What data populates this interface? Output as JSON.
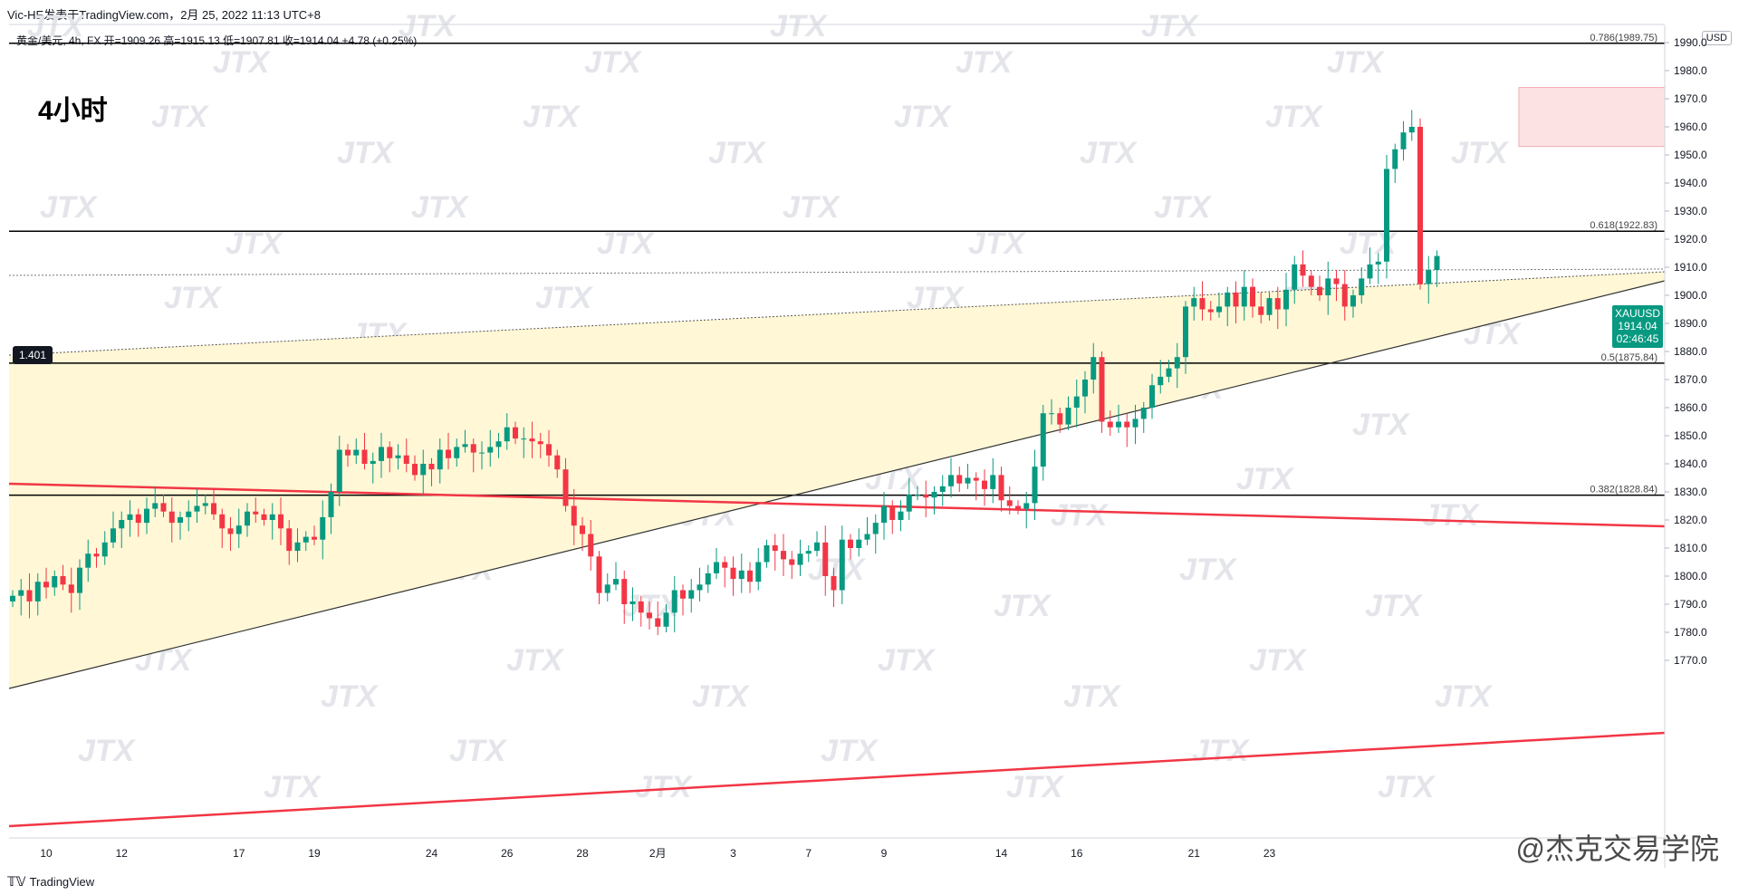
{
  "header": {
    "publisher": "Vic-HE发表于TradingView.com，2月 25, 2022 11:13 UTC+8",
    "ohlc": "黄金/美元, 4h, FX  开=1909.26  高=1915.13  低=1907.81  收=1914.04  +4.78 (+0.25%)",
    "currency": "USD"
  },
  "timeframe_label": "4小时",
  "ratio_tag": "1.401",
  "price_tag": {
    "symbol": "XAUUSD",
    "price": "1914.04",
    "countdown": "02:46:45"
  },
  "fib_levels": [
    {
      "label": "0.786(1989.75)",
      "value": 1989.75
    },
    {
      "label": "0.618(1922.83)",
      "value": 1922.83
    },
    {
      "label": "0.5(1875.84)",
      "value": 1875.84
    },
    {
      "label": "0.382(1828.84)",
      "value": 1828.84
    }
  ],
  "watermark": "JTX",
  "footer": {
    "brand": "TradingView",
    "author": "@杰克交易学院"
  },
  "colors": {
    "up": "#089981",
    "down": "#f23645",
    "support": "#f23645",
    "zone": "#fff7d6",
    "box": "#fde2e4"
  },
  "chart_data": {
    "type": "candlestick",
    "symbol": "XAUUSD",
    "interval": "4h",
    "ylim": [
      1765,
      1995
    ],
    "y_ticks": [
      1770,
      1780,
      1790,
      1800,
      1810,
      1820,
      1830,
      1840,
      1850,
      1860,
      1870,
      1880,
      1890,
      1900,
      1910,
      1920,
      1930,
      1940,
      1950,
      1960,
      1970,
      1980,
      1990
    ],
    "x_ticks": [
      {
        "label": "10",
        "index": 4
      },
      {
        "label": "12",
        "index": 13
      },
      {
        "label": "17",
        "index": 27
      },
      {
        "label": "19",
        "index": 36
      },
      {
        "label": "24",
        "index": 50
      },
      {
        "label": "26",
        "index": 59
      },
      {
        "label": "28",
        "index": 68
      },
      {
        "label": "2月",
        "index": 77
      },
      {
        "label": "3",
        "index": 86
      },
      {
        "label": "7",
        "index": 95
      },
      {
        "label": "9",
        "index": 104
      },
      {
        "label": "14",
        "index": 118
      },
      {
        "label": "16",
        "index": 127
      },
      {
        "label": "21",
        "index": 141
      },
      {
        "label": "23",
        "index": 150
      }
    ],
    "closes": [
      1793,
      1795,
      1791,
      1798,
      1796,
      1800,
      1797,
      1794,
      1803,
      1808,
      1807,
      1812,
      1817,
      1820,
      1822,
      1819,
      1824,
      1826,
      1823,
      1819,
      1821,
      1823,
      1825,
      1826,
      1822,
      1817,
      1815,
      1818,
      1823,
      1822,
      1820,
      1822,
      1817,
      1809,
      1812,
      1814,
      1813,
      1821,
      1830,
      1845,
      1843,
      1845,
      1840,
      1841,
      1846,
      1842,
      1843,
      1840,
      1836,
      1840,
      1838,
      1845,
      1842,
      1846,
      1847,
      1844,
      1844,
      1846,
      1848,
      1853,
      1849,
      1849,
      1848,
      1847,
      1843,
      1838,
      1825,
      1818,
      1815,
      1807,
      1794,
      1797,
      1799,
      1790,
      1791,
      1787,
      1785,
      1782,
      1787,
      1795,
      1792,
      1795,
      1797,
      1801,
      1805,
      1803,
      1799,
      1802,
      1798,
      1805,
      1811,
      1809,
      1806,
      1804,
      1808,
      1809,
      1812,
      1800,
      1795,
      1813,
      1810,
      1813,
      1815,
      1819,
      1825,
      1820,
      1823,
      1829,
      1829,
      1828,
      1830,
      1832,
      1836,
      1833,
      1835,
      1834,
      1831,
      1836,
      1827,
      1825,
      1824,
      1826,
      1839,
      1858,
      1858,
      1854,
      1860,
      1864,
      1870,
      1878,
      1855,
      1853,
      1855,
      1853,
      1856,
      1860,
      1868,
      1871,
      1874,
      1878,
      1896,
      1899,
      1895,
      1894,
      1896,
      1901,
      1896,
      1903,
      1896,
      1893,
      1899,
      1895,
      1902,
      1911,
      1907,
      1903,
      1900,
      1906,
      1904,
      1896,
      1900,
      1906,
      1911,
      1912,
      1945,
      1952,
      1958,
      1960,
      1904,
      1909,
      1914
    ]
  }
}
